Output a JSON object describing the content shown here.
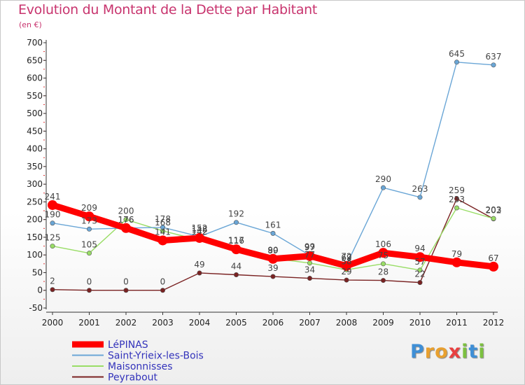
{
  "chart_data": {
    "type": "line",
    "title": "Evolution du Montant de la Dette par Habitant",
    "unit_label": "(en €)",
    "x": [
      "2000",
      "2001",
      "2002",
      "2003",
      "2004",
      "2005",
      "2006",
      "2007",
      "2008",
      "2009",
      "2010",
      "2011",
      "2012"
    ],
    "ylim": [
      -50,
      700
    ],
    "yticks": [
      -50,
      0,
      50,
      100,
      150,
      200,
      250,
      300,
      350,
      400,
      450,
      500,
      550,
      600,
      650,
      700
    ],
    "grid": false,
    "legend_position": "bottom-left",
    "series": [
      {
        "name": "LéPINAS",
        "color": "#ff0000",
        "values": [
          241,
          209,
          176,
          141,
          148,
          116,
          89,
          97,
          69,
          106,
          94,
          79,
          67
        ]
      },
      {
        "name": "Saint-Yrieix-les-Bois",
        "color": "#6aa6d6",
        "values": [
          190,
          173,
          176,
          178,
          152,
          192,
          161,
          99,
          72,
          290,
          263,
          645,
          637
        ]
      },
      {
        "name": "Maisonnisses",
        "color": "#99dd66",
        "values": [
          125,
          105,
          200,
          168,
          142,
          117,
          90,
          77,
          58,
          75,
          57,
          233,
          203
        ]
      },
      {
        "name": "Peyrabout",
        "color": "#7a2222",
        "values": [
          2,
          0,
          0,
          0,
          49,
          44,
          39,
          34,
          29,
          28,
          22,
          259,
          202
        ]
      }
    ]
  },
  "logo_text": "Proxiti"
}
